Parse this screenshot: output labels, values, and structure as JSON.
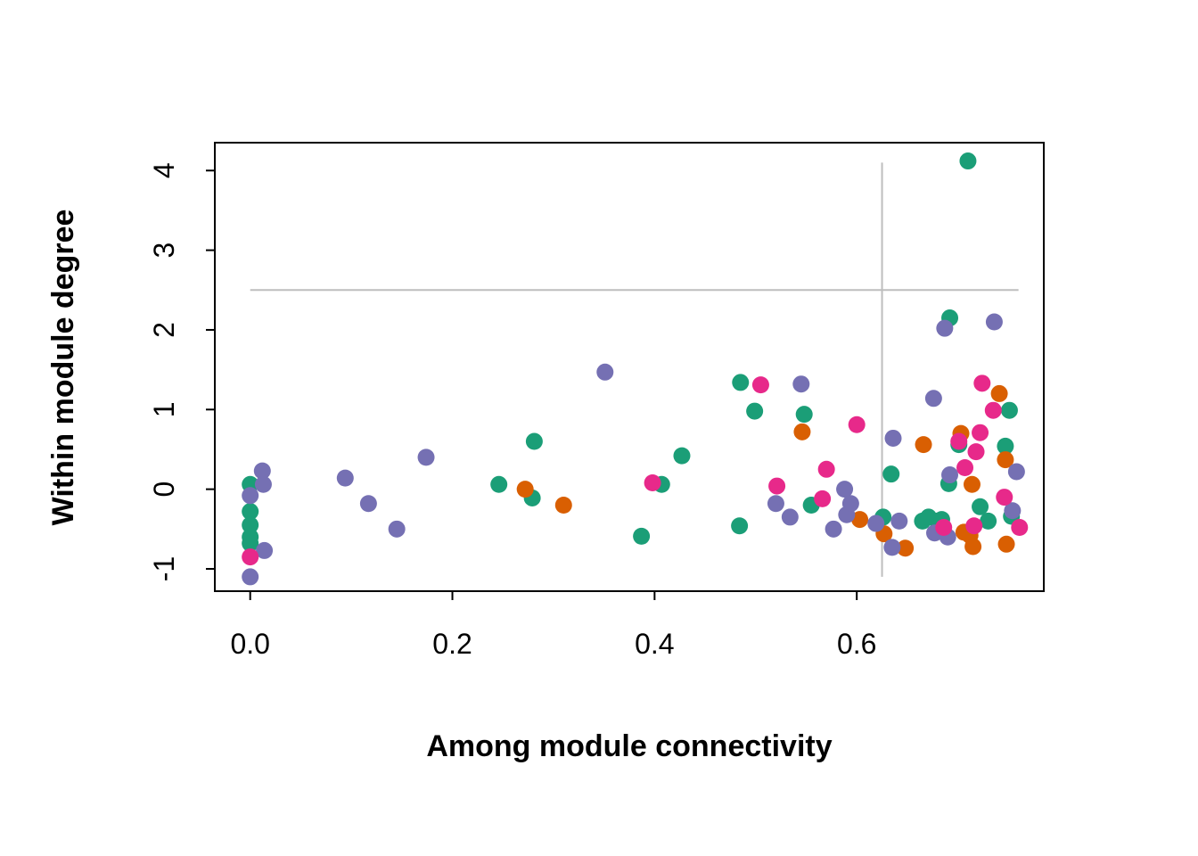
{
  "chart_data": {
    "type": "scatter",
    "xlabel": "Among module connectivity",
    "ylabel": "Within module degree",
    "xlim": [
      -0.035,
      0.785
    ],
    "ylim": [
      -1.28,
      4.35
    ],
    "xticks": [
      0.0,
      0.2,
      0.4,
      0.6
    ],
    "xtick_labels": [
      "0.0",
      "0.2",
      "0.4",
      "0.6"
    ],
    "yticks": [
      -1,
      0,
      1,
      2,
      3,
      4
    ],
    "ytick_labels": [
      "-1",
      "0",
      "1",
      "2",
      "3",
      "4"
    ],
    "grid": false,
    "legend": "none",
    "reference_lines": {
      "horizontal": {
        "y": 2.5,
        "x_from": 0.0,
        "x_to": 0.76,
        "color": "#bebebe"
      },
      "vertical": {
        "x": 0.625,
        "y_from": -1.1,
        "y_to": 4.1,
        "color": "#bebebe"
      }
    },
    "series": [
      {
        "color": "#1b9e77",
        "points": [
          [
            0.0,
            0.06
          ],
          [
            0.0,
            -0.28
          ],
          [
            0.0,
            -0.45
          ],
          [
            0.0,
            -0.6
          ],
          [
            0.0,
            -0.68
          ],
          [
            0.246,
            0.06
          ],
          [
            0.279,
            -0.11
          ],
          [
            0.281,
            0.6
          ],
          [
            0.387,
            -0.59
          ],
          [
            0.407,
            0.06
          ],
          [
            0.427,
            0.42
          ],
          [
            0.484,
            -0.46
          ],
          [
            0.485,
            1.34
          ],
          [
            0.499,
            0.98
          ],
          [
            0.548,
            0.94
          ],
          [
            0.555,
            -0.2
          ],
          [
            0.626,
            -0.35
          ],
          [
            0.634,
            0.19
          ],
          [
            0.665,
            -0.4
          ],
          [
            0.671,
            -0.35
          ],
          [
            0.68,
            -0.4
          ],
          [
            0.684,
            -0.38
          ],
          [
            0.691,
            0.07
          ],
          [
            0.692,
            2.15
          ],
          [
            0.701,
            0.56
          ],
          [
            0.71,
            4.12
          ],
          [
            0.722,
            -0.22
          ],
          [
            0.73,
            -0.4
          ],
          [
            0.747,
            0.54
          ],
          [
            0.751,
            0.99
          ],
          [
            0.753,
            -0.34
          ]
        ]
      },
      {
        "color": "#d95f02",
        "points": [
          [
            0.272,
            0.0
          ],
          [
            0.31,
            -0.2
          ],
          [
            0.546,
            0.72
          ],
          [
            0.603,
            -0.38
          ],
          [
            0.627,
            -0.56
          ],
          [
            0.648,
            -0.74
          ],
          [
            0.666,
            0.56
          ],
          [
            0.703,
            0.7
          ],
          [
            0.706,
            -0.54
          ],
          [
            0.712,
            -0.58
          ],
          [
            0.714,
            0.06
          ],
          [
            0.715,
            -0.72
          ],
          [
            0.741,
            1.2
          ],
          [
            0.747,
            0.37
          ],
          [
            0.748,
            -0.69
          ]
        ]
      },
      {
        "color": "#7570b3",
        "points": [
          [
            0.0,
            -0.08
          ],
          [
            0.0,
            -1.1
          ],
          [
            0.012,
            0.23
          ],
          [
            0.013,
            0.06
          ],
          [
            0.014,
            -0.77
          ],
          [
            0.094,
            0.14
          ],
          [
            0.117,
            -0.18
          ],
          [
            0.145,
            -0.5
          ],
          [
            0.174,
            0.4
          ],
          [
            0.351,
            1.47
          ],
          [
            0.52,
            -0.18
          ],
          [
            0.534,
            -0.35
          ],
          [
            0.545,
            1.32
          ],
          [
            0.577,
            -0.5
          ],
          [
            0.588,
            0.0
          ],
          [
            0.59,
            -0.32
          ],
          [
            0.594,
            -0.18
          ],
          [
            0.619,
            -0.43
          ],
          [
            0.635,
            -0.73
          ],
          [
            0.636,
            0.64
          ],
          [
            0.642,
            -0.4
          ],
          [
            0.676,
            1.14
          ],
          [
            0.677,
            -0.55
          ],
          [
            0.687,
            2.02
          ],
          [
            0.69,
            -0.6
          ],
          [
            0.692,
            0.18
          ],
          [
            0.736,
            2.1
          ],
          [
            0.754,
            -0.27
          ],
          [
            0.758,
            0.22
          ]
        ]
      },
      {
        "color": "#e7298a",
        "points": [
          [
            0.0,
            -0.85
          ],
          [
            0.398,
            0.08
          ],
          [
            0.505,
            1.31
          ],
          [
            0.521,
            0.04
          ],
          [
            0.566,
            -0.12
          ],
          [
            0.57,
            0.25
          ],
          [
            0.6,
            0.81
          ],
          [
            0.686,
            -0.48
          ],
          [
            0.701,
            0.6
          ],
          [
            0.707,
            0.27
          ],
          [
            0.716,
            -0.46
          ],
          [
            0.718,
            0.47
          ],
          [
            0.722,
            0.71
          ],
          [
            0.724,
            1.33
          ],
          [
            0.735,
            0.99
          ],
          [
            0.746,
            -0.1
          ],
          [
            0.761,
            -0.48
          ]
        ]
      }
    ]
  }
}
